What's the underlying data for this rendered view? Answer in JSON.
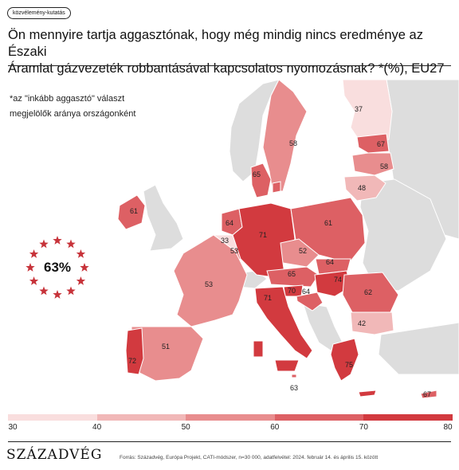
{
  "tag": "közvélemény-kutatás",
  "title_line1": "Ön mennyire tartja aggasztónak, hogy még mindig nincs eredménye az Északi",
  "title_line2": "Áramlat gázvezeték robbantásával kapcsolatos nyomozásnak? *(%), EU27",
  "subtitle_line1": "*az \"inkább aggasztó\" választ",
  "subtitle_line2": "megjelölők aránya országonként",
  "overall": {
    "value": "63%",
    "star_color": "#c7333a"
  },
  "legend": {
    "ticks": [
      "30",
      "40",
      "50",
      "60",
      "70",
      "80"
    ],
    "colors": [
      "#f9dede",
      "#f1b8b8",
      "#e88d8e",
      "#dd6064",
      "#d23a3f"
    ]
  },
  "logo": "SZÁZADVÉG",
  "source": "Forrás: Századvég, Európa Projekt, CATI-módszer, n=30 000, adatfelvétel: 2024. február 14. és április 15. között",
  "chart_data": {
    "type": "choropleth",
    "title": "Ön mennyire tartja aggasztónak, hogy még mindig nincs eredménye az Északi Áramlat gázvezeték robbantásával kapcsolatos nyomozásnak? *(%), EU27",
    "unit": "%",
    "scale": [
      30,
      80
    ],
    "eu27_average": 63,
    "countries": [
      {
        "name": "Finland",
        "value": 37
      },
      {
        "name": "Sweden",
        "value": 58
      },
      {
        "name": "Estonia",
        "value": 67
      },
      {
        "name": "Latvia",
        "value": 58
      },
      {
        "name": "Lithuania",
        "value": 48
      },
      {
        "name": "Denmark",
        "value": 65
      },
      {
        "name": "Ireland",
        "value": 61
      },
      {
        "name": "Netherlands",
        "value": 64
      },
      {
        "name": "Belgium",
        "value": 33
      },
      {
        "name": "Luxembourg",
        "value": 53
      },
      {
        "name": "Germany",
        "value": 71
      },
      {
        "name": "Poland",
        "value": 61
      },
      {
        "name": "Czechia",
        "value": 52
      },
      {
        "name": "Slovakia",
        "value": 64
      },
      {
        "name": "Austria",
        "value": 65
      },
      {
        "name": "Hungary",
        "value": 74
      },
      {
        "name": "Slovenia",
        "value": 70
      },
      {
        "name": "Croatia",
        "value": 64
      },
      {
        "name": "Romania",
        "value": 62
      },
      {
        "name": "Bulgaria",
        "value": 42
      },
      {
        "name": "France",
        "value": 53
      },
      {
        "name": "Spain",
        "value": 51
      },
      {
        "name": "Portugal",
        "value": 72
      },
      {
        "name": "Italy",
        "value": 71
      },
      {
        "name": "Malta",
        "value": 63
      },
      {
        "name": "Greece",
        "value": 75
      },
      {
        "name": "Cyprus",
        "value": 67
      }
    ]
  }
}
